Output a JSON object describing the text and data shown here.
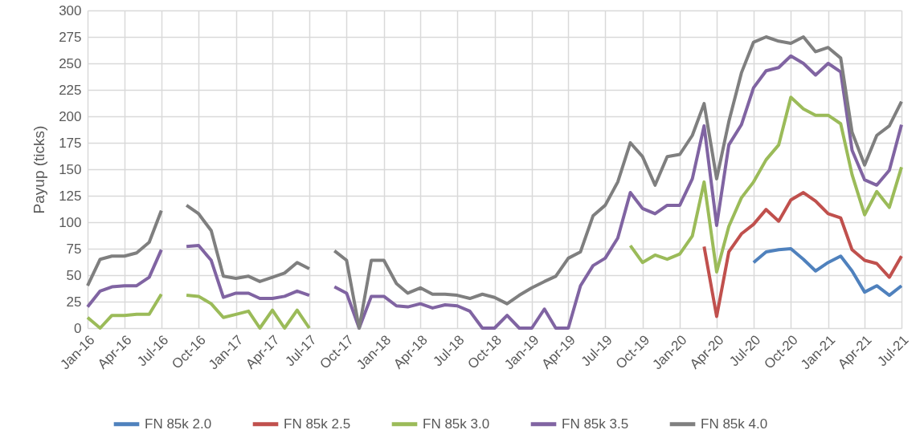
{
  "chart_data": {
    "type": "line",
    "ylabel": "Payup (ticks)",
    "x": [
      "2016-01",
      "2016-02",
      "2016-03",
      "2016-04",
      "2016-05",
      "2016-06",
      "2016-07",
      "2016-08",
      "2016-09",
      "2016-10",
      "2016-11",
      "2016-12",
      "2017-01",
      "2017-02",
      "2017-03",
      "2017-04",
      "2017-05",
      "2017-06",
      "2017-07",
      "2017-08",
      "2017-09",
      "2017-10",
      "2017-11",
      "2017-12",
      "2018-01",
      "2018-02",
      "2018-03",
      "2018-04",
      "2018-05",
      "2018-06",
      "2018-07",
      "2018-08",
      "2018-09",
      "2018-10",
      "2018-11",
      "2018-12",
      "2019-01",
      "2019-02",
      "2019-03",
      "2019-04",
      "2019-05",
      "2019-06",
      "2019-07",
      "2019-08",
      "2019-09",
      "2019-10",
      "2019-11",
      "2019-12",
      "2020-01",
      "2020-02",
      "2020-03",
      "2020-04",
      "2020-05",
      "2020-06",
      "2020-07",
      "2020-08",
      "2020-09",
      "2020-10",
      "2020-11",
      "2020-12",
      "2021-01",
      "2021-02",
      "2021-03",
      "2021-04",
      "2021-05",
      "2021-06",
      "2021-07"
    ],
    "series": [
      {
        "name": "FN 85k 2.0",
        "color": "#4f81bd",
        "values": [
          null,
          null,
          null,
          null,
          null,
          null,
          null,
          null,
          null,
          null,
          null,
          null,
          null,
          null,
          null,
          null,
          null,
          null,
          null,
          null,
          null,
          null,
          null,
          null,
          null,
          null,
          null,
          null,
          null,
          null,
          null,
          null,
          null,
          null,
          null,
          null,
          null,
          null,
          null,
          null,
          null,
          null,
          null,
          null,
          null,
          null,
          null,
          null,
          null,
          null,
          null,
          null,
          null,
          null,
          62,
          72,
          74,
          75,
          65,
          54,
          62,
          68,
          54,
          34,
          40,
          31,
          40
        ]
      },
      {
        "name": "FN 85k 2.5",
        "color": "#c0504d",
        "values": [
          null,
          null,
          null,
          null,
          null,
          null,
          null,
          null,
          null,
          null,
          null,
          null,
          null,
          null,
          null,
          null,
          null,
          null,
          null,
          null,
          null,
          null,
          null,
          null,
          null,
          null,
          null,
          null,
          null,
          null,
          null,
          null,
          null,
          null,
          null,
          null,
          null,
          null,
          null,
          null,
          null,
          null,
          null,
          null,
          null,
          null,
          null,
          null,
          null,
          null,
          77,
          11,
          72,
          89,
          98,
          112,
          101,
          121,
          128,
          120,
          108,
          104,
          74,
          64,
          61,
          48,
          68
        ]
      },
      {
        "name": "FN 85k 3.0",
        "color": "#9bbb59",
        "values": [
          10,
          0,
          12,
          12,
          13,
          13,
          32,
          null,
          31,
          30,
          23,
          10,
          13,
          16,
          0,
          17,
          0,
          17,
          0,
          null,
          null,
          null,
          null,
          null,
          null,
          null,
          null,
          null,
          null,
          null,
          null,
          null,
          null,
          null,
          null,
          null,
          null,
          null,
          null,
          null,
          null,
          null,
          null,
          null,
          78,
          62,
          69,
          65,
          70,
          87,
          138,
          53,
          96,
          123,
          138,
          159,
          173,
          218,
          207,
          201,
          201,
          193,
          145,
          107,
          129,
          114,
          152
        ]
      },
      {
        "name": "FN 85k 3.5",
        "color": "#8064a2",
        "values": [
          20,
          35,
          39,
          40,
          40,
          48,
          74,
          null,
          77,
          78,
          64,
          29,
          33,
          33,
          28,
          28,
          30,
          35,
          31,
          null,
          39,
          33,
          0,
          30,
          30,
          21,
          20,
          23,
          19,
          22,
          21,
          16,
          0,
          0,
          12,
          0,
          0,
          18,
          0,
          0,
          40,
          59,
          66,
          85,
          128,
          113,
          108,
          116,
          116,
          141,
          191,
          97,
          173,
          192,
          227,
          243,
          246,
          257,
          250,
          239,
          250,
          242,
          168,
          140,
          135,
          149,
          192
        ]
      },
      {
        "name": "FN 85k 4.0",
        "color": "#7f7f7f",
        "values": [
          40,
          65,
          68,
          68,
          71,
          81,
          111,
          null,
          116,
          108,
          92,
          49,
          47,
          49,
          44,
          48,
          52,
          62,
          56,
          null,
          73,
          64,
          0,
          64,
          64,
          42,
          33,
          38,
          32,
          32,
          31,
          28,
          32,
          29,
          23,
          31,
          38,
          44,
          49,
          66,
          72,
          106,
          116,
          138,
          175,
          162,
          135,
          162,
          164,
          182,
          212,
          141,
          195,
          241,
          270,
          275,
          271,
          269,
          275,
          261,
          265,
          255,
          185,
          154,
          182,
          191,
          214
        ]
      }
    ],
    "xlim": [
      "2016-01",
      "2021-07"
    ],
    "xticks": [
      {
        "value": "2016-01",
        "label": "Jan-16"
      },
      {
        "value": "2016-04",
        "label": "Apr-16"
      },
      {
        "value": "2016-07",
        "label": "Jul-16"
      },
      {
        "value": "2016-10",
        "label": "Oct-16"
      },
      {
        "value": "2017-01",
        "label": "Jan-17"
      },
      {
        "value": "2017-04",
        "label": "Apr-17"
      },
      {
        "value": "2017-07",
        "label": "Jul-17"
      },
      {
        "value": "2017-10",
        "label": "Oct-17"
      },
      {
        "value": "2018-01",
        "label": "Jan-18"
      },
      {
        "value": "2018-04",
        "label": "Apr-18"
      },
      {
        "value": "2018-07",
        "label": "Jul-18"
      },
      {
        "value": "2018-10",
        "label": "Oct-18"
      },
      {
        "value": "2019-01",
        "label": "Jan-19"
      },
      {
        "value": "2019-04",
        "label": "Apr-19"
      },
      {
        "value": "2019-07",
        "label": "Jul-19"
      },
      {
        "value": "2019-10",
        "label": "Oct-19"
      },
      {
        "value": "2020-01",
        "label": "Jan-20"
      },
      {
        "value": "2020-04",
        "label": "Apr-20"
      },
      {
        "value": "2020-07",
        "label": "Jul-20"
      },
      {
        "value": "2020-10",
        "label": "Oct-20"
      },
      {
        "value": "2021-01",
        "label": "Jan-21"
      },
      {
        "value": "2021-04",
        "label": "Apr-21"
      },
      {
        "value": "2021-07",
        "label": "Jul-21"
      }
    ],
    "ylim": [
      0,
      300
    ],
    "yticks": [
      0,
      25,
      50,
      75,
      100,
      125,
      150,
      175,
      200,
      225,
      250,
      275,
      300
    ],
    "grid": true,
    "legend": "bottom"
  }
}
